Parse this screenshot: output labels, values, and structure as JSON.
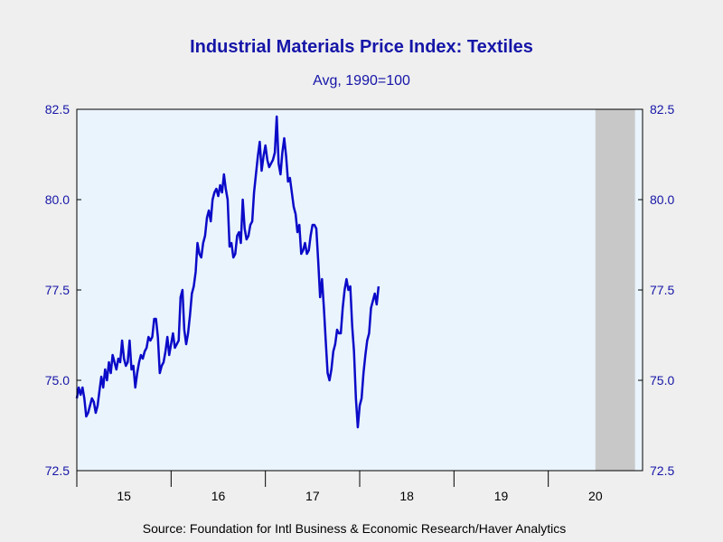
{
  "chart_data": {
    "type": "line",
    "title": "Industrial Materials Price Index: Textiles",
    "subtitle": "Avg, 1990=100",
    "source": "Source:  Foundation for Intl Business & Economic Research/Haver Analytics",
    "ylim": [
      72.5,
      82.5
    ],
    "yticks": [
      "72.5",
      "75.0",
      "77.5",
      "80.0",
      "82.5"
    ],
    "xlim": [
      2014.5,
      2020.5
    ],
    "xticks": [
      {
        "label": "15",
        "x": 2015
      },
      {
        "label": "16",
        "x": 2016
      },
      {
        "label": "17",
        "x": 2017
      },
      {
        "label": "18",
        "x": 2018
      },
      {
        "label": "19",
        "x": 2019
      },
      {
        "label": "20",
        "x": 2020
      }
    ],
    "recession": {
      "start": 2020.0,
      "end": 2020.42
    },
    "grid": false,
    "colors": {
      "line": "#0a0ac8",
      "plot_bg": "#eaf4fd",
      "recession": "#c8c8c8",
      "text": "#1515a8"
    },
    "series": [
      {
        "points": [
          [
            2014.5,
            74.5
          ],
          [
            2014.52,
            74.8
          ],
          [
            2014.54,
            74.6
          ],
          [
            2014.56,
            74.8
          ],
          [
            2014.58,
            74.5
          ],
          [
            2014.6,
            74.0
          ],
          [
            2014.62,
            74.1
          ],
          [
            2014.64,
            74.3
          ],
          [
            2014.66,
            74.5
          ],
          [
            2014.68,
            74.4
          ],
          [
            2014.7,
            74.1
          ],
          [
            2014.72,
            74.3
          ],
          [
            2014.74,
            74.7
          ],
          [
            2014.76,
            75.1
          ],
          [
            2014.78,
            74.8
          ],
          [
            2014.8,
            75.3
          ],
          [
            2014.82,
            75.0
          ],
          [
            2014.84,
            75.5
          ],
          [
            2014.86,
            75.2
          ],
          [
            2014.88,
            75.7
          ],
          [
            2014.9,
            75.5
          ],
          [
            2014.92,
            75.3
          ],
          [
            2014.94,
            75.6
          ],
          [
            2014.96,
            75.5
          ],
          [
            2014.98,
            76.1
          ],
          [
            2015.0,
            75.6
          ],
          [
            2015.02,
            75.4
          ],
          [
            2015.04,
            75.5
          ],
          [
            2015.06,
            76.1
          ],
          [
            2015.08,
            75.3
          ],
          [
            2015.1,
            75.4
          ],
          [
            2015.12,
            74.8
          ],
          [
            2015.14,
            75.2
          ],
          [
            2015.16,
            75.5
          ],
          [
            2015.18,
            75.7
          ],
          [
            2015.2,
            75.6
          ],
          [
            2015.22,
            75.8
          ],
          [
            2015.24,
            75.9
          ],
          [
            2015.26,
            76.2
          ],
          [
            2015.28,
            76.1
          ],
          [
            2015.3,
            76.2
          ],
          [
            2015.32,
            76.7
          ],
          [
            2015.34,
            76.7
          ],
          [
            2015.36,
            76.2
          ],
          [
            2015.38,
            75.2
          ],
          [
            2015.4,
            75.4
          ],
          [
            2015.42,
            75.5
          ],
          [
            2015.44,
            75.8
          ],
          [
            2015.46,
            76.2
          ],
          [
            2015.48,
            75.7
          ],
          [
            2015.5,
            76.0
          ],
          [
            2015.52,
            76.3
          ],
          [
            2015.54,
            75.9
          ],
          [
            2015.56,
            76.0
          ],
          [
            2015.58,
            76.1
          ],
          [
            2015.6,
            77.3
          ],
          [
            2015.62,
            77.5
          ],
          [
            2015.64,
            76.4
          ],
          [
            2015.66,
            76.0
          ],
          [
            2015.68,
            76.3
          ],
          [
            2015.7,
            76.8
          ],
          [
            2015.72,
            77.4
          ],
          [
            2015.74,
            77.6
          ],
          [
            2015.76,
            78.0
          ],
          [
            2015.78,
            78.8
          ],
          [
            2015.8,
            78.5
          ],
          [
            2015.82,
            78.4
          ],
          [
            2015.84,
            78.8
          ],
          [
            2015.86,
            79.0
          ],
          [
            2015.88,
            79.5
          ],
          [
            2015.9,
            79.7
          ],
          [
            2015.92,
            79.4
          ],
          [
            2015.94,
            80.0
          ],
          [
            2015.96,
            80.2
          ],
          [
            2015.98,
            80.3
          ],
          [
            2016.0,
            80.1
          ],
          [
            2016.02,
            80.4
          ],
          [
            2016.04,
            80.2
          ],
          [
            2016.06,
            80.7
          ],
          [
            2016.08,
            80.3
          ],
          [
            2016.1,
            80.0
          ],
          [
            2016.12,
            78.7
          ],
          [
            2016.14,
            78.8
          ],
          [
            2016.16,
            78.4
          ],
          [
            2016.18,
            78.5
          ],
          [
            2016.2,
            79.0
          ],
          [
            2016.22,
            79.1
          ],
          [
            2016.24,
            78.8
          ],
          [
            2016.26,
            80.0
          ],
          [
            2016.28,
            79.2
          ],
          [
            2016.3,
            78.9
          ],
          [
            2016.32,
            79.0
          ],
          [
            2016.34,
            79.3
          ],
          [
            2016.36,
            79.4
          ],
          [
            2016.38,
            80.2
          ],
          [
            2016.4,
            80.7
          ],
          [
            2016.42,
            81.2
          ],
          [
            2016.44,
            81.6
          ],
          [
            2016.46,
            80.8
          ],
          [
            2016.48,
            81.2
          ],
          [
            2016.5,
            81.5
          ],
          [
            2016.52,
            81.1
          ],
          [
            2016.54,
            80.9
          ],
          [
            2016.56,
            81.0
          ],
          [
            2016.58,
            81.1
          ],
          [
            2016.6,
            81.3
          ],
          [
            2016.62,
            82.3
          ],
          [
            2016.64,
            81.0
          ],
          [
            2016.66,
            80.7
          ],
          [
            2016.68,
            81.3
          ],
          [
            2016.7,
            81.7
          ],
          [
            2016.72,
            81.2
          ],
          [
            2016.74,
            80.5
          ],
          [
            2016.76,
            80.6
          ],
          [
            2016.78,
            80.2
          ],
          [
            2016.8,
            79.8
          ],
          [
            2016.82,
            79.6
          ],
          [
            2016.84,
            79.1
          ],
          [
            2016.86,
            79.3
          ],
          [
            2016.88,
            78.5
          ],
          [
            2016.9,
            78.6
          ],
          [
            2016.92,
            78.8
          ],
          [
            2016.94,
            78.5
          ],
          [
            2016.96,
            78.6
          ],
          [
            2016.98,
            79.0
          ],
          [
            2017.0,
            79.3
          ],
          [
            2017.02,
            79.3
          ],
          [
            2017.04,
            79.2
          ],
          [
            2017.06,
            78.3
          ],
          [
            2017.08,
            77.3
          ],
          [
            2017.1,
            77.8
          ],
          [
            2017.12,
            77.0
          ],
          [
            2017.14,
            76.1
          ],
          [
            2017.16,
            75.2
          ],
          [
            2017.18,
            75.0
          ],
          [
            2017.2,
            75.3
          ],
          [
            2017.22,
            75.8
          ],
          [
            2017.24,
            76.0
          ],
          [
            2017.26,
            76.4
          ],
          [
            2017.28,
            76.3
          ],
          [
            2017.3,
            76.3
          ],
          [
            2017.32,
            77.0
          ],
          [
            2017.34,
            77.5
          ],
          [
            2017.36,
            77.8
          ],
          [
            2017.38,
            77.5
          ],
          [
            2017.4,
            77.6
          ],
          [
            2017.42,
            76.5
          ],
          [
            2017.44,
            75.8
          ],
          [
            2017.46,
            74.5
          ],
          [
            2017.48,
            73.7
          ],
          [
            2017.5,
            74.3
          ],
          [
            2017.52,
            74.5
          ],
          [
            2017.54,
            75.2
          ],
          [
            2017.56,
            75.7
          ],
          [
            2017.58,
            76.1
          ],
          [
            2017.6,
            76.3
          ],
          [
            2017.62,
            77.0
          ],
          [
            2017.64,
            77.2
          ],
          [
            2017.66,
            77.4
          ],
          [
            2017.68,
            77.1
          ],
          [
            2017.7,
            77.6
          ]
        ]
      }
    ]
  }
}
